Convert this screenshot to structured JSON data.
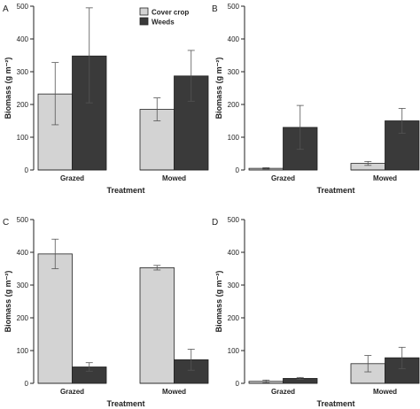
{
  "colors": {
    "Cover crop": "#d3d3d3",
    "Weeds": "#3a3a3a",
    "axis": "#222222"
  },
  "legend": [
    "Cover crop",
    "Weeds"
  ],
  "chart_data": [
    {
      "panel": "A",
      "type": "bar",
      "categories": [
        "Grazed",
        "Mowed"
      ],
      "series": [
        {
          "name": "Cover crop",
          "values": [
            232,
            185
          ],
          "error": [
            [
              138,
              328
            ],
            [
              150,
              220
            ]
          ]
        },
        {
          "name": "Weeds",
          "values": [
            348,
            287
          ],
          "error": [
            [
              205,
              495
            ],
            [
              210,
              365
            ]
          ]
        }
      ],
      "xlabel": "Treatment",
      "ylabel": "Biomass (g m⁻²)",
      "yticks": [
        0,
        100,
        200,
        300,
        400,
        500
      ],
      "ylim": [
        0,
        500
      ],
      "legend": "top-center"
    },
    {
      "panel": "B",
      "type": "bar",
      "categories": [
        "Grazed",
        "Mowed"
      ],
      "series": [
        {
          "name": "Cover crop",
          "values": [
            5,
            20
          ],
          "error": [
            [
              3,
              7
            ],
            [
              14,
              26
            ]
          ]
        },
        {
          "name": "Weeds",
          "values": [
            130,
            150
          ],
          "error": [
            [
              63,
              197
            ],
            [
              112,
              188
            ]
          ]
        }
      ],
      "xlabel": "Treatment",
      "ylabel": "Biomass (g m⁻²)",
      "yticks": [
        0,
        100,
        200,
        300,
        400,
        500
      ],
      "ylim": [
        0,
        500
      ]
    },
    {
      "panel": "C",
      "type": "bar",
      "categories": [
        "Grazed",
        "Mowed"
      ],
      "series": [
        {
          "name": "Cover crop",
          "values": [
            395,
            353
          ],
          "error": [
            [
              350,
              440
            ],
            [
              346,
              360
            ]
          ]
        },
        {
          "name": "Weeds",
          "values": [
            50,
            72
          ],
          "error": [
            [
              37,
              63
            ],
            [
              40,
              104
            ]
          ]
        }
      ],
      "xlabel": "Treatment",
      "ylabel": "Biomass (g m⁻²)",
      "yticks": [
        0,
        100,
        200,
        300,
        400,
        500
      ],
      "ylim": [
        0,
        500
      ]
    },
    {
      "panel": "D",
      "type": "bar",
      "categories": [
        "Grazed",
        "Mowed"
      ],
      "series": [
        {
          "name": "Cover crop",
          "values": [
            6,
            60
          ],
          "error": [
            [
              2,
              10
            ],
            [
              35,
              85
            ]
          ]
        },
        {
          "name": "Weeds",
          "values": [
            15,
            78
          ],
          "error": [
            [
              12,
              18
            ],
            [
              45,
              110
            ]
          ]
        }
      ],
      "xlabel": "Treatment",
      "ylabel": "Biomass (g m⁻²)",
      "yticks": [
        0,
        100,
        200,
        300,
        400,
        500
      ],
      "ylim": [
        0,
        500
      ]
    }
  ]
}
